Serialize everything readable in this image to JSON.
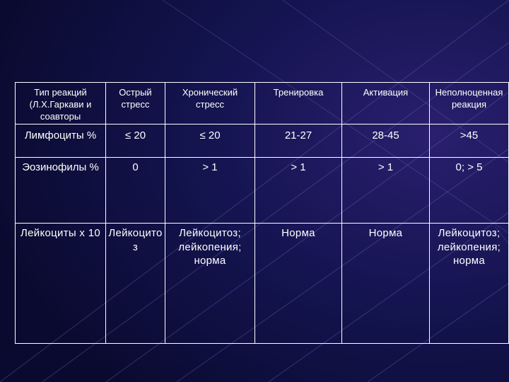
{
  "colors": {
    "background": "#0c0c3a",
    "text": "#ffffff",
    "grid": "#ffffff"
  },
  "table": {
    "header": [
      "Тип реакций (Л.Х.Гаркави и соавторы",
      "Острый стресс",
      "Хронический стресс",
      "Тренировка",
      "Активация",
      "Неполноценная реакция"
    ],
    "rows": [
      [
        "Лимфоциты %",
        "≤ 20",
        "≤ 20",
        "21-27",
        "28-45",
        ">45"
      ],
      [
        "Эозинофилы %",
        "0",
        "> 1",
        "> 1",
        "> 1",
        "0; > 5"
      ],
      [
        "Лейкоциты х 10",
        "Лейкоцитоз",
        "Лейкоцитоз; лейкопения; норма",
        "Норма",
        "Норма",
        "Лейкоцитоз; лейкопения; норма"
      ]
    ]
  }
}
